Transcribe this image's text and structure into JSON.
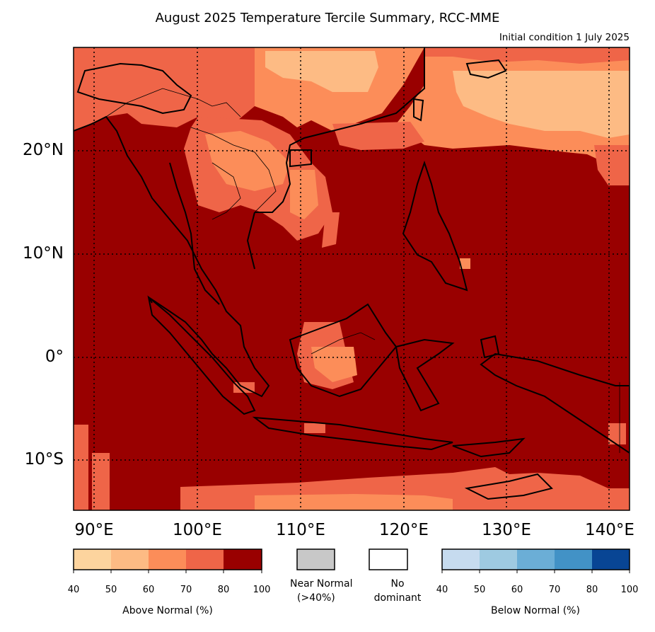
{
  "title": "August 2025 Temperature Tercile Summary, RCC-MME",
  "subtitle": "Initial condition 1 July 2025",
  "lat_ticks": [
    "20°N",
    "10°N",
    "0°",
    "10°S"
  ],
  "lon_ticks": [
    "90°E",
    "100°E",
    "110°E",
    "120°E",
    "130°E",
    "140°E"
  ],
  "colors": {
    "above": [
      "#fdd49e",
      "#fdbb84",
      "#fc8d59",
      "#ef6548",
      "#990000"
    ],
    "below": [
      "#c6dbef",
      "#9ecae1",
      "#6baed6",
      "#4292c6",
      "#084594"
    ],
    "near_normal": "#c8c8c8",
    "no_dominant": "#ffffff",
    "coast": "#000000"
  },
  "legend": {
    "above_normal": {
      "label": "Above Normal (%)",
      "ticks": [
        "40",
        "50",
        "60",
        "70",
        "80",
        "100"
      ]
    },
    "near_normal": {
      "label_line1": "Near Normal",
      "label_line2": "(>40%)"
    },
    "no_dominant": {
      "label_line1": "No",
      "label_line2": "dominant"
    },
    "below_normal": {
      "label": "Below Normal (%)",
      "ticks": [
        "40",
        "50",
        "60",
        "70",
        "80",
        "100"
      ]
    }
  }
}
